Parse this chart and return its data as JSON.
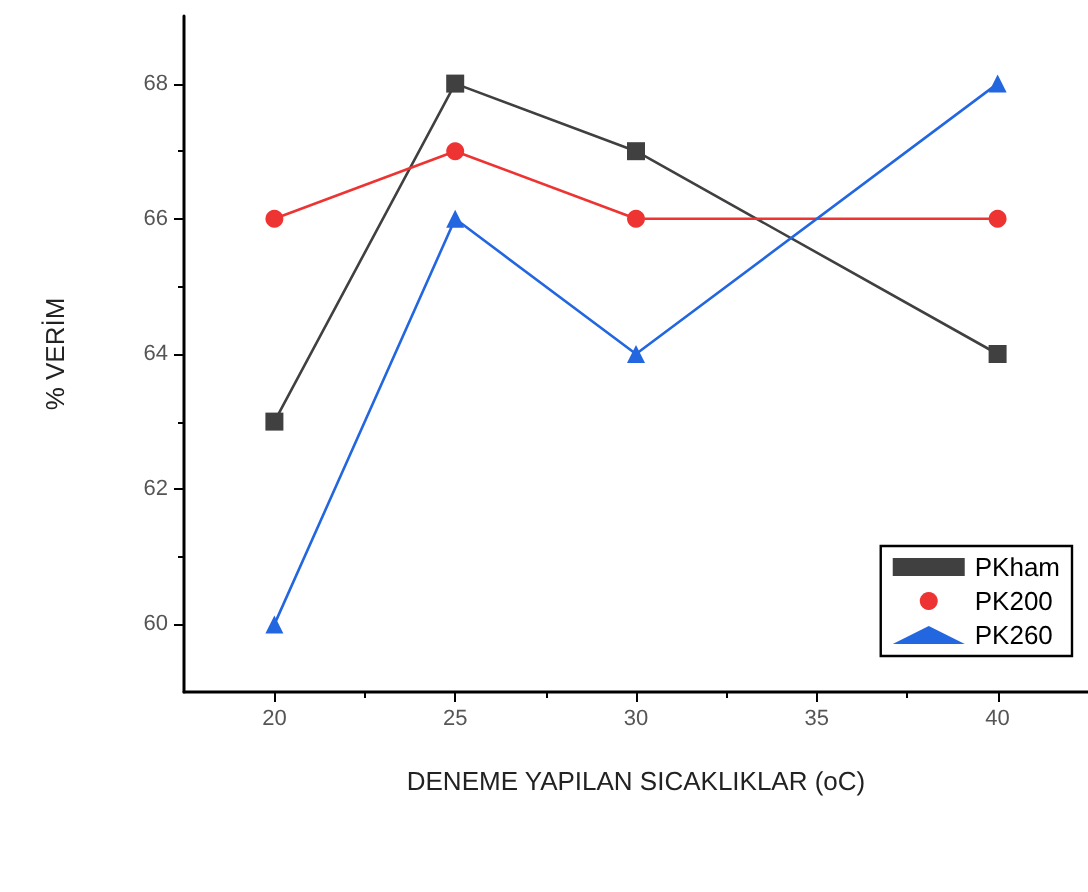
{
  "chart_data": {
    "type": "line",
    "xlabel": "DENEME YAPILAN SICAKLIKLAR (oC)",
    "ylabel": "% VERİM",
    "x": [
      20,
      25,
      30,
      40
    ],
    "series": [
      {
        "name": "PKham",
        "color": "#404040",
        "marker": "square",
        "values": [
          63,
          68,
          67,
          64
        ]
      },
      {
        "name": "PK200",
        "color": "#ee3333",
        "marker": "circle",
        "values": [
          66,
          67,
          66,
          66
        ]
      },
      {
        "name": "PK260",
        "color": "#2266e0",
        "marker": "triangle",
        "values": [
          60,
          66,
          64,
          68
        ]
      }
    ],
    "xlim": [
      17.5,
      42.5
    ],
    "xticks": [
      20,
      25,
      30,
      35,
      40
    ],
    "ylim": [
      59,
      69
    ],
    "yticks": [
      60,
      62,
      64,
      66,
      68
    ],
    "grid": false,
    "legend": "bottom right",
    "line_style": "solid"
  }
}
